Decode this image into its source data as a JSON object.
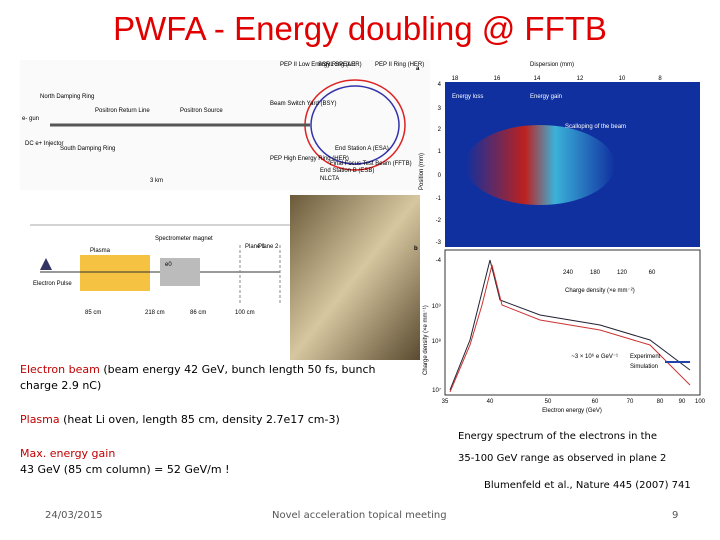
{
  "header": {
    "title": "PWFA - Energy doubling @ FFTB"
  },
  "schematic": {
    "labels": [
      "PEP II Low Energy Ring (LER)",
      "SSRL SPEAR",
      "PEP II Ring (HER)",
      "North Damping Ring",
      "e- gun",
      "Positron Return Line",
      "Positron Source",
      "Beam Switch Yard (BSY)",
      "End Station A (ESA)",
      "Final Focus Test Beam (FFTB)",
      "DC e+ Injector",
      "South Damping Ring",
      "PEP High Energy Ring (HER)",
      "NLCTA",
      "End Station B (ESB)",
      "3 km"
    ]
  },
  "setup": {
    "labels": [
      "Spectrometer magnet",
      "Plane 1",
      "Plane 2",
      "Plasma",
      "e0",
      "Electron Pulse",
      "85 cm",
      "218 cm",
      "86 cm",
      "100 cm"
    ]
  },
  "plot": {
    "panel_a": "a",
    "panel_b": "b",
    "top_axis": "Dispersion (mm)",
    "top_ticks": [
      "18",
      "16",
      "14",
      "12",
      "10",
      "8"
    ],
    "y_axis_a": "Position (mm)",
    "y_ticks_a": [
      "4",
      "3",
      "2",
      "1",
      "0",
      "-1",
      "-2",
      "-3",
      "-4"
    ],
    "annotations": [
      "Energy loss",
      "Energy gain",
      "Scalloping of the beam"
    ],
    "colorbar_ticks": [
      "240",
      "180",
      "120",
      "60"
    ],
    "colorbar_label": "Charge density (×e mm⁻²)",
    "y_axis_b": "Charge density (×e mm⁻¹)",
    "y_ticks_b": [
      "10⁹",
      "10⁸",
      "10⁷"
    ],
    "legend": [
      "Experiment",
      "Simulation"
    ],
    "bar_label": "~3 × 10⁶ e GeV⁻¹",
    "x_axis": "Electron energy (GeV)",
    "x_ticks": [
      "35",
      "40",
      "50",
      "60",
      "70",
      "80",
      "90",
      "100"
    ]
  },
  "body": {
    "items": [
      {
        "label": "Electron beam",
        "text": " (beam energy 42 GeV, bunch length 50 fs, bunch charge 2.9 nC)"
      },
      {
        "label": "Plasma",
        "text": " (heat Li oven, length 85 cm, density 2.7e17 cm-3)"
      },
      {
        "label": "Max. energy gain",
        "text": "43 GeV (85 cm column) = 52 GeV/m !"
      }
    ]
  },
  "caption": {
    "lines": [
      "Energy spectrum of the electrons in the",
      "35-100 GeV range as observed in plane 2"
    ],
    "reference": "Blumenfeld et al., Nature 445 (2007) 741"
  },
  "footer": {
    "date": "24/03/2015",
    "title": "Novel acceleration topical meeting",
    "page": "9"
  }
}
